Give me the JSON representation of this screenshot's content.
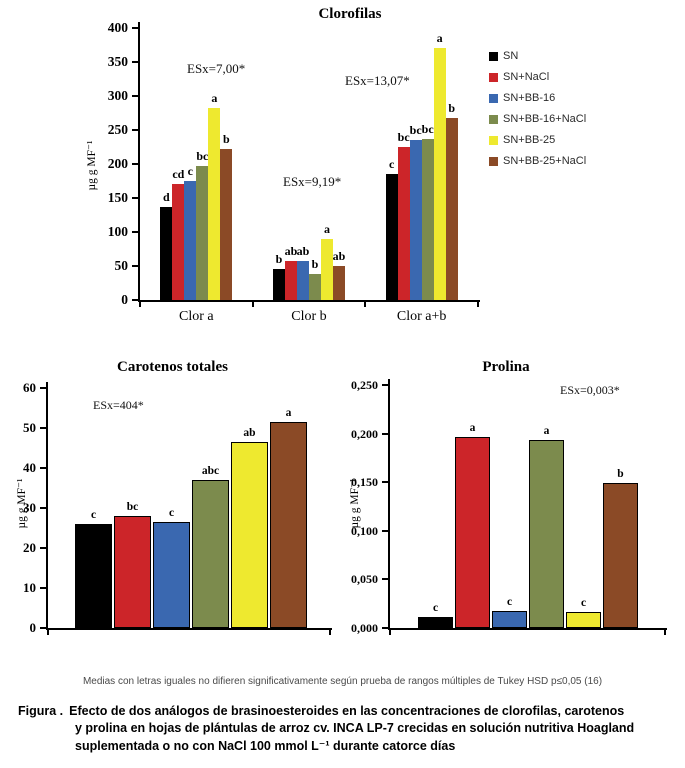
{
  "figure": {
    "note": "Medias con letras iguales no difieren significativamente según prueba de rangos múltiples de Tukey HSD p≤0,05 (16)",
    "caption_label": "Figura .",
    "caption_lines": [
      "Efecto de dos análogos de brasinoesteroides en las concentraciones de clorofilas, carotenos",
      "y prolina en hojas de plántulas de arroz cv. INCA LP-7 crecidas en solución nutritiva Hoagland",
      "suplementada o no con NaCl 100 mmol L⁻¹ durante catorce días"
    ]
  },
  "legend": {
    "items": [
      {
        "label": "SN",
        "color": "#000000"
      },
      {
        "label": "SN+NaCl",
        "color": "#CC2529"
      },
      {
        "label": "SN+BB-16",
        "color": "#3A68B0"
      },
      {
        "label": "SN+BB-16+NaCl",
        "color": "#7C8B4D"
      },
      {
        "label": "SN+BB-25",
        "color": "#EEE92F"
      },
      {
        "label": "SN+BB-25+NaCl",
        "color": "#8B4A26"
      }
    ]
  },
  "chart_data": [
    {
      "id": "clorofilas",
      "type": "bar",
      "title": "Clorofilas",
      "ylabel": "µg g MF⁻¹",
      "xlabel": "",
      "ylim": [
        0,
        400
      ],
      "ystep": 50,
      "ytick_labels": [
        "0",
        "50",
        "100",
        "150",
        "200",
        "250",
        "300",
        "350",
        "400"
      ],
      "grid": false,
      "legend_position": "right",
      "categories": [
        "Clor a",
        "Clor b",
        "Clor a+b"
      ],
      "annotations": [
        "ESx=7,00*",
        "ESx=9,19*",
        "ESx=13,07*"
      ],
      "series": [
        {
          "name": "SN",
          "color": "#000000",
          "values": [
            137,
            45,
            185
          ],
          "letters": [
            "d",
            "b",
            "c"
          ]
        },
        {
          "name": "SN+NaCl",
          "color": "#CC2529",
          "values": [
            170,
            57,
            225
          ],
          "letters": [
            "cd",
            "ab",
            "bc"
          ]
        },
        {
          "name": "SN+BB-16",
          "color": "#3A68B0",
          "values": [
            175,
            57,
            235
          ],
          "letters": [
            "c",
            "ab",
            "bc"
          ]
        },
        {
          "name": "SN+BB-16+NaCl",
          "color": "#7C8B4D",
          "values": [
            197,
            38,
            237
          ],
          "letters": [
            "bc",
            "b",
            "bc"
          ]
        },
        {
          "name": "SN+BB-25",
          "color": "#EEE92F",
          "values": [
            283,
            90,
            370
          ],
          "letters": [
            "a",
            "a",
            "a"
          ]
        },
        {
          "name": "SN+BB-25+NaCl",
          "color": "#8B4A26",
          "values": [
            222,
            50,
            268
          ],
          "letters": [
            "b",
            "ab",
            "b"
          ]
        }
      ]
    },
    {
      "id": "carotenos",
      "type": "bar",
      "title": "Carotenos totales",
      "ylabel": "µg g MF⁻¹",
      "xlabel": "",
      "ylim": [
        0,
        60
      ],
      "ystep": 10,
      "ytick_labels": [
        "0",
        "10",
        "20",
        "30",
        "40",
        "50",
        "60"
      ],
      "grid": false,
      "categories": [
        ""
      ],
      "annotations": [
        "ESx=404*"
      ],
      "series": [
        {
          "name": "SN",
          "color": "#000000",
          "values": [
            26
          ],
          "letters": [
            "c"
          ]
        },
        {
          "name": "SN+NaCl",
          "color": "#CC2529",
          "values": [
            28
          ],
          "letters": [
            "bc"
          ]
        },
        {
          "name": "SN+BB-16",
          "color": "#3A68B0",
          "values": [
            26.5
          ],
          "letters": [
            "c"
          ]
        },
        {
          "name": "SN+BB-16+NaCl",
          "color": "#7C8B4D",
          "values": [
            37
          ],
          "letters": [
            "abc"
          ]
        },
        {
          "name": "SN+BB-25",
          "color": "#EEE92F",
          "values": [
            46.5
          ],
          "letters": [
            "ab"
          ]
        },
        {
          "name": "SN+BB-25+NaCl",
          "color": "#8B4A26",
          "values": [
            51.5
          ],
          "letters": [
            "a"
          ]
        }
      ]
    },
    {
      "id": "prolina",
      "type": "bar",
      "title": "Prolina",
      "ylabel": "µg g MF⁻¹",
      "xlabel": "",
      "ylim": [
        0,
        0.25
      ],
      "ystep": 0.05,
      "ytick_labels": [
        "0,000",
        "0,050",
        "0,100",
        "0,150",
        "0,200",
        "0,250"
      ],
      "grid": false,
      "categories": [
        ""
      ],
      "annotations": [
        "ESx=0,003*"
      ],
      "series": [
        {
          "name": "SN",
          "color": "#000000",
          "values": [
            0.011
          ],
          "letters": [
            "c"
          ]
        },
        {
          "name": "SN+NaCl",
          "color": "#CC2529",
          "values": [
            0.197
          ],
          "letters": [
            "a"
          ]
        },
        {
          "name": "SN+BB-16",
          "color": "#3A68B0",
          "values": [
            0.018
          ],
          "letters": [
            "c"
          ]
        },
        {
          "name": "SN+BB-16+NaCl",
          "color": "#7C8B4D",
          "values": [
            0.193
          ],
          "letters": [
            "a"
          ]
        },
        {
          "name": "SN+BB-25",
          "color": "#EEE92F",
          "values": [
            0.016
          ],
          "letters": [
            "c"
          ]
        },
        {
          "name": "SN+BB-25+NaCl",
          "color": "#8B4A26",
          "values": [
            0.149
          ],
          "letters": [
            "b"
          ]
        }
      ]
    }
  ]
}
